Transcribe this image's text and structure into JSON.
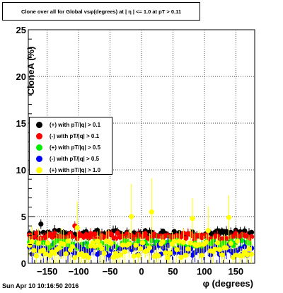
{
  "title": "Clone  over all for Global vsφ(degrees) at | η | <= 1.0 at pT > 0.11",
  "timestamp": "Sun Apr 10 10:16:50 2016",
  "chart_data": {
    "type": "scatter",
    "xlabel": "φ (degrees)",
    "ylabel": "CloneA (%)",
    "xlim": [
      -180,
      180
    ],
    "ylim": [
      0,
      25
    ],
    "xticks": [
      -150,
      -100,
      -50,
      0,
      50,
      100,
      150
    ],
    "yticks": [
      0,
      5,
      10,
      15,
      20,
      25
    ],
    "grid": true,
    "legend_position": "left-middle",
    "series": [
      {
        "name": "(+) with pT/|q| > 0.1",
        "color": "#000000",
        "level": 3.2,
        "spread": 0.35,
        "err": 0.4
      },
      {
        "name": "(-) with pT/|q| > 0.1",
        "color": "#ff0000",
        "level": 2.9,
        "spread": 0.35,
        "err": 0.4
      },
      {
        "name": "(+) with pT/|q| > 0.5",
        "color": "#00ee00",
        "level": 2.0,
        "spread": 0.45,
        "err": 0.6
      },
      {
        "name": "(-) with pT/|q| > 0.5",
        "color": "#0000ff",
        "level": 1.4,
        "spread": 0.55,
        "err": 0.7
      },
      {
        "name": "(+) with pT/|q| > 1.0",
        "color": "#ffff00",
        "level": 1.5,
        "spread": 0.9,
        "err": 1.2
      }
    ],
    "highlights": [
      {
        "series": 4,
        "x": -15,
        "y": 5.0,
        "err": 3.5
      },
      {
        "series": 4,
        "x": 15,
        "y": 5.5,
        "err": 3.6
      },
      {
        "series": 4,
        "x": 80,
        "y": 4.8,
        "err": 2.2
      },
      {
        "series": 4,
        "x": 138,
        "y": 4.9,
        "err": 2.4
      },
      {
        "series": 4,
        "x": -103,
        "y": 3.8,
        "err": 2.8
      },
      {
        "series": 4,
        "x": 105,
        "y": 3.5,
        "err": 2.6
      },
      {
        "series": 1,
        "x": -105,
        "y": 4.0,
        "err": 0.5
      },
      {
        "series": 1,
        "x": 130,
        "y": 4.2,
        "err": 0.5
      },
      {
        "series": 0,
        "x": -160,
        "y": 4.2,
        "err": 0.5
      }
    ]
  }
}
